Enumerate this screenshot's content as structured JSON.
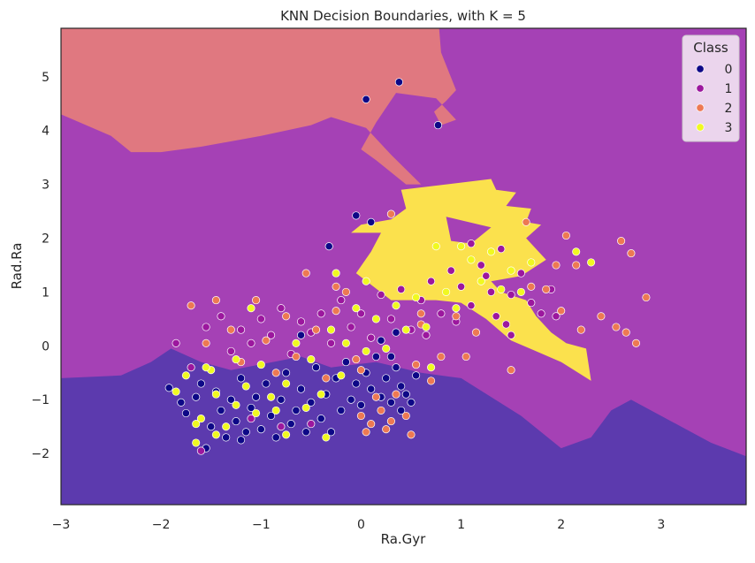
{
  "chart_data": {
    "type": "scatter",
    "title": "KNN Decision Boundaries, with K = 5",
    "xlabel": "Ra.Gyr",
    "ylabel": "Rad.Ra",
    "xlim": [
      -3,
      3.85
    ],
    "ylim": [
      -2.95,
      5.9
    ],
    "xticks": [
      -3,
      -2,
      -1,
      0,
      1,
      2,
      3
    ],
    "yticks": [
      -2,
      -1,
      0,
      1,
      2,
      3,
      4,
      5
    ],
    "xtick_labels": [
      "−3",
      "−2",
      "−1",
      "0",
      "1",
      "2",
      "3"
    ],
    "ytick_labels": [
      "−2",
      "−1",
      "0",
      "1",
      "2",
      "3",
      "4",
      "5"
    ],
    "legend": {
      "title": "Class",
      "position": "top-right",
      "entries": [
        "0",
        "1",
        "2",
        "3"
      ]
    },
    "grid": false,
    "class_colors": {
      "0": "#0d0887",
      "1": "#9c179e",
      "2": "#ed7953",
      "3": "#f0f921"
    },
    "region_colors": {
      "0": "#5c3aae",
      "1": "#a541b5",
      "2": "#e07880",
      "3": "#fbe14d"
    },
    "regions": {
      "class0": [
        [
          -3,
          -0.6
        ],
        [
          -2.4,
          -0.55
        ],
        [
          -2.1,
          -0.3
        ],
        [
          -1.9,
          -0.05
        ],
        [
          -1.6,
          -0.3
        ],
        [
          -1.3,
          -0.45
        ],
        [
          -0.6,
          -0.2
        ],
        [
          -0.3,
          -0.4
        ],
        [
          0.15,
          -0.3
        ],
        [
          0.6,
          -0.5
        ],
        [
          1.0,
          -0.6
        ],
        [
          1.6,
          -1.3
        ],
        [
          2.0,
          -1.9
        ],
        [
          2.3,
          -1.7
        ],
        [
          2.5,
          -1.2
        ],
        [
          2.7,
          -1.0
        ],
        [
          3.1,
          -1.4
        ],
        [
          3.5,
          -1.8
        ],
        [
          3.85,
          -2.05
        ],
        [
          3.85,
          -2.95
        ],
        [
          -3,
          -2.95
        ]
      ],
      "class2": [
        [
          -3,
          5.9
        ],
        [
          -3,
          4.3
        ],
        [
          -2.5,
          3.9
        ],
        [
          -2.3,
          3.6
        ],
        [
          -2.0,
          3.6
        ],
        [
          -1.6,
          3.7
        ],
        [
          -1.0,
          3.9
        ],
        [
          -0.5,
          4.1
        ],
        [
          -0.3,
          4.25
        ],
        [
          0.05,
          4.05
        ],
        [
          0.3,
          3.55
        ],
        [
          0.6,
          3.0
        ],
        [
          0.45,
          3.0
        ],
        [
          0.15,
          3.45
        ],
        [
          0.0,
          3.65
        ],
        [
          0.15,
          4.15
        ],
        [
          0.35,
          4.7
        ],
        [
          0.75,
          4.6
        ],
        [
          0.95,
          4.2
        ],
        [
          0.8,
          4.1
        ],
        [
          0.73,
          4.35
        ],
        [
          0.85,
          4.55
        ],
        [
          0.95,
          4.75
        ],
        [
          0.8,
          5.45
        ],
        [
          0.78,
          5.9
        ]
      ],
      "class3": [
        [
          0.4,
          2.9
        ],
        [
          1.3,
          3.1
        ],
        [
          1.35,
          2.9
        ],
        [
          1.55,
          2.85
        ],
        [
          1.45,
          2.6
        ],
        [
          1.7,
          2.55
        ],
        [
          1.65,
          2.3
        ],
        [
          1.8,
          2.25
        ],
        [
          1.65,
          2.0
        ],
        [
          1.85,
          1.6
        ],
        [
          1.6,
          1.3
        ],
        [
          1.3,
          1.2
        ],
        [
          1.4,
          1.0
        ],
        [
          1.65,
          0.85
        ],
        [
          1.75,
          0.55
        ],
        [
          1.9,
          0.25
        ],
        [
          2.05,
          0.05
        ],
        [
          2.25,
          -0.05
        ],
        [
          2.3,
          -0.65
        ],
        [
          2.0,
          -0.3
        ],
        [
          1.75,
          -0.1
        ],
        [
          1.5,
          0.1
        ],
        [
          1.25,
          0.5
        ],
        [
          1.0,
          0.8
        ],
        [
          0.75,
          0.85
        ],
        [
          0.3,
          0.85
        ],
        [
          -0.05,
          1.35
        ],
        [
          0.1,
          1.75
        ],
        [
          0.2,
          2.1
        ],
        [
          -0.1,
          2.1
        ],
        [
          0.0,
          2.25
        ],
        [
          0.3,
          2.35
        ],
        [
          0.45,
          2.55
        ]
      ],
      "class3_hole": [
        [
          0.85,
          2.4
        ],
        [
          1.3,
          2.2
        ],
        [
          1.1,
          1.9
        ],
        [
          0.9,
          1.95
        ]
      ]
    },
    "series": [
      {
        "name": "0",
        "points": [
          [
            -1.92,
            -0.78
          ],
          [
            -1.8,
            -1.05
          ],
          [
            -1.75,
            -1.25
          ],
          [
            -1.65,
            -0.95
          ],
          [
            -1.6,
            -0.7
          ],
          [
            -1.5,
            -1.5
          ],
          [
            -1.45,
            -0.85
          ],
          [
            -1.4,
            -1.2
          ],
          [
            -1.35,
            -1.7
          ],
          [
            -1.3,
            -1.0
          ],
          [
            -1.25,
            -1.4
          ],
          [
            -1.2,
            -0.6
          ],
          [
            -1.15,
            -1.6
          ],
          [
            -1.1,
            -1.15
          ],
          [
            -1.05,
            -0.95
          ],
          [
            -1.0,
            -1.55
          ],
          [
            -0.95,
            -0.7
          ],
          [
            -0.9,
            -1.3
          ],
          [
            -0.85,
            -1.7
          ],
          [
            -0.8,
            -1.0
          ],
          [
            -0.75,
            -0.5
          ],
          [
            -0.7,
            -1.45
          ],
          [
            -0.65,
            -1.2
          ],
          [
            -0.6,
            -0.8
          ],
          [
            -0.55,
            -1.6
          ],
          [
            -0.5,
            -1.05
          ],
          [
            -0.45,
            -0.4
          ],
          [
            -0.4,
            -1.35
          ],
          [
            -0.35,
            -0.9
          ],
          [
            -0.3,
            -1.6
          ],
          [
            -0.25,
            -0.6
          ],
          [
            -0.2,
            -1.2
          ],
          [
            -0.15,
            -0.3
          ],
          [
            -0.1,
            -1.0
          ],
          [
            -0.05,
            -0.7
          ],
          [
            0.0,
            -1.1
          ],
          [
            0.05,
            -0.5
          ],
          [
            0.1,
            -0.8
          ],
          [
            0.15,
            -0.2
          ],
          [
            0.2,
            -0.95
          ],
          [
            0.25,
            -0.6
          ],
          [
            0.3,
            -1.05
          ],
          [
            0.35,
            -0.4
          ],
          [
            0.4,
            -0.75
          ],
          [
            0.45,
            -0.9
          ],
          [
            0.5,
            -1.05
          ],
          [
            0.55,
            -0.55
          ],
          [
            0.2,
            0.1
          ],
          [
            0.35,
            0.25
          ],
          [
            -0.6,
            0.2
          ],
          [
            -1.2,
            -1.75
          ],
          [
            -1.55,
            -1.9
          ],
          [
            -0.05,
            2.42
          ],
          [
            0.1,
            2.3
          ],
          [
            -0.32,
            1.85
          ],
          [
            0.05,
            4.58
          ],
          [
            0.38,
            4.9
          ],
          [
            0.77,
            4.1
          ],
          [
            0.3,
            -0.2
          ],
          [
            0.4,
            -1.2
          ]
        ]
      },
      {
        "name": "1",
        "points": [
          [
            -1.85,
            0.05
          ],
          [
            -1.7,
            -0.4
          ],
          [
            -1.55,
            0.35
          ],
          [
            -1.4,
            0.55
          ],
          [
            -1.3,
            -0.1
          ],
          [
            -1.2,
            0.3
          ],
          [
            -1.1,
            0.05
          ],
          [
            -1.0,
            0.5
          ],
          [
            -0.9,
            0.2
          ],
          [
            -0.8,
            0.7
          ],
          [
            -0.7,
            -0.15
          ],
          [
            -0.6,
            0.45
          ],
          [
            -0.5,
            0.25
          ],
          [
            -0.4,
            0.6
          ],
          [
            -0.3,
            0.05
          ],
          [
            -0.2,
            0.85
          ],
          [
            -0.1,
            0.35
          ],
          [
            0.0,
            0.6
          ],
          [
            0.1,
            0.15
          ],
          [
            0.2,
            0.95
          ],
          [
            0.3,
            0.5
          ],
          [
            0.4,
            1.05
          ],
          [
            0.5,
            0.3
          ],
          [
            0.6,
            0.85
          ],
          [
            0.7,
            1.2
          ],
          [
            0.8,
            0.6
          ],
          [
            0.9,
            1.4
          ],
          [
            1.0,
            1.1
          ],
          [
            1.1,
            0.75
          ],
          [
            1.2,
            1.5
          ],
          [
            1.3,
            1.0
          ],
          [
            1.4,
            1.8
          ],
          [
            1.5,
            0.95
          ],
          [
            1.6,
            1.35
          ],
          [
            1.7,
            0.8
          ],
          [
            1.8,
            0.6
          ],
          [
            1.9,
            1.05
          ],
          [
            1.95,
            0.55
          ],
          [
            1.1,
            1.9
          ],
          [
            1.25,
            1.3
          ],
          [
            0.95,
            0.45
          ],
          [
            0.65,
            0.2
          ],
          [
            1.45,
            0.4
          ],
          [
            -1.1,
            -1.35
          ],
          [
            -0.8,
            -1.5
          ],
          [
            -0.5,
            -1.45
          ],
          [
            -1.6,
            -1.95
          ],
          [
            1.5,
            0.2
          ],
          [
            1.35,
            0.55
          ]
        ]
      },
      {
        "name": "2",
        "points": [
          [
            -1.7,
            0.75
          ],
          [
            -1.55,
            0.05
          ],
          [
            -1.45,
            0.85
          ],
          [
            -1.3,
            0.3
          ],
          [
            -1.2,
            -0.3
          ],
          [
            -1.05,
            0.85
          ],
          [
            -0.95,
            0.1
          ],
          [
            -0.85,
            -0.5
          ],
          [
            -0.75,
            0.55
          ],
          [
            -0.65,
            -0.2
          ],
          [
            -0.55,
            1.35
          ],
          [
            -0.45,
            0.3
          ],
          [
            -0.35,
            -0.6
          ],
          [
            -0.25,
            0.65
          ],
          [
            -0.15,
            1.0
          ],
          [
            -0.05,
            -0.25
          ],
          [
            0.0,
            -1.3
          ],
          [
            0.05,
            -1.6
          ],
          [
            0.1,
            -1.45
          ],
          [
            0.15,
            -0.95
          ],
          [
            0.2,
            -1.2
          ],
          [
            0.25,
            -1.55
          ],
          [
            0.3,
            -1.4
          ],
          [
            0.35,
            -0.9
          ],
          [
            0.45,
            -1.3
          ],
          [
            0.5,
            -1.65
          ],
          [
            0.55,
            -0.35
          ],
          [
            0.6,
            0.4
          ],
          [
            0.7,
            -0.65
          ],
          [
            0.8,
            -0.2
          ],
          [
            0.95,
            0.55
          ],
          [
            1.05,
            -0.2
          ],
          [
            1.15,
            0.25
          ],
          [
            1.5,
            -0.45
          ],
          [
            1.7,
            1.1
          ],
          [
            1.85,
            1.05
          ],
          [
            2.0,
            0.65
          ],
          [
            2.05,
            2.05
          ],
          [
            2.15,
            1.5
          ],
          [
            2.4,
            0.55
          ],
          [
            2.55,
            0.35
          ],
          [
            2.6,
            1.95
          ],
          [
            2.65,
            0.25
          ],
          [
            2.7,
            1.72
          ],
          [
            2.75,
            0.05
          ],
          [
            2.85,
            0.9
          ],
          [
            2.2,
            0.3
          ],
          [
            1.95,
            1.5
          ],
          [
            1.65,
            2.3
          ],
          [
            0.3,
            2.45
          ],
          [
            0.6,
            0.6
          ],
          [
            -0.25,
            1.1
          ],
          [
            0.0,
            -0.45
          ]
        ]
      },
      {
        "name": "3",
        "points": [
          [
            -1.85,
            -0.85
          ],
          [
            -1.75,
            -0.55
          ],
          [
            -1.65,
            -1.8
          ],
          [
            -1.6,
            -1.35
          ],
          [
            -1.5,
            -0.45
          ],
          [
            -1.45,
            -0.9
          ],
          [
            -1.35,
            -1.5
          ],
          [
            -1.25,
            -0.25
          ],
          [
            -1.15,
            -0.75
          ],
          [
            -1.05,
            -1.25
          ],
          [
            -1.0,
            -0.35
          ],
          [
            -0.9,
            -0.95
          ],
          [
            -0.85,
            -1.2
          ],
          [
            -0.75,
            -0.7
          ],
          [
            -0.65,
            0.05
          ],
          [
            -0.55,
            -1.15
          ],
          [
            -0.5,
            -0.25
          ],
          [
            -0.4,
            -0.9
          ],
          [
            -0.3,
            0.3
          ],
          [
            -0.2,
            -0.55
          ],
          [
            -0.15,
            0.05
          ],
          [
            -0.05,
            0.7
          ],
          [
            0.05,
            -0.1
          ],
          [
            0.15,
            0.5
          ],
          [
            0.25,
            -0.05
          ],
          [
            0.35,
            0.75
          ],
          [
            0.45,
            0.3
          ],
          [
            0.55,
            0.9
          ],
          [
            0.65,
            0.35
          ],
          [
            0.75,
            1.85
          ],
          [
            0.85,
            1.0
          ],
          [
            0.95,
            0.7
          ],
          [
            1.0,
            1.85
          ],
          [
            1.1,
            1.6
          ],
          [
            1.2,
            1.2
          ],
          [
            1.3,
            1.75
          ],
          [
            1.4,
            1.05
          ],
          [
            1.5,
            1.4
          ],
          [
            1.6,
            1.0
          ],
          [
            1.7,
            1.55
          ],
          [
            2.15,
            1.75
          ],
          [
            2.3,
            1.55
          ],
          [
            -1.65,
            -1.45
          ],
          [
            -1.55,
            -0.4
          ],
          [
            -1.25,
            -1.1
          ],
          [
            -0.75,
            -1.65
          ],
          [
            -0.35,
            -1.7
          ],
          [
            -0.25,
            1.35
          ],
          [
            0.05,
            1.2
          ],
          [
            0.7,
            -0.4
          ],
          [
            -1.1,
            0.7
          ],
          [
            -1.45,
            -1.65
          ]
        ]
      }
    ]
  }
}
